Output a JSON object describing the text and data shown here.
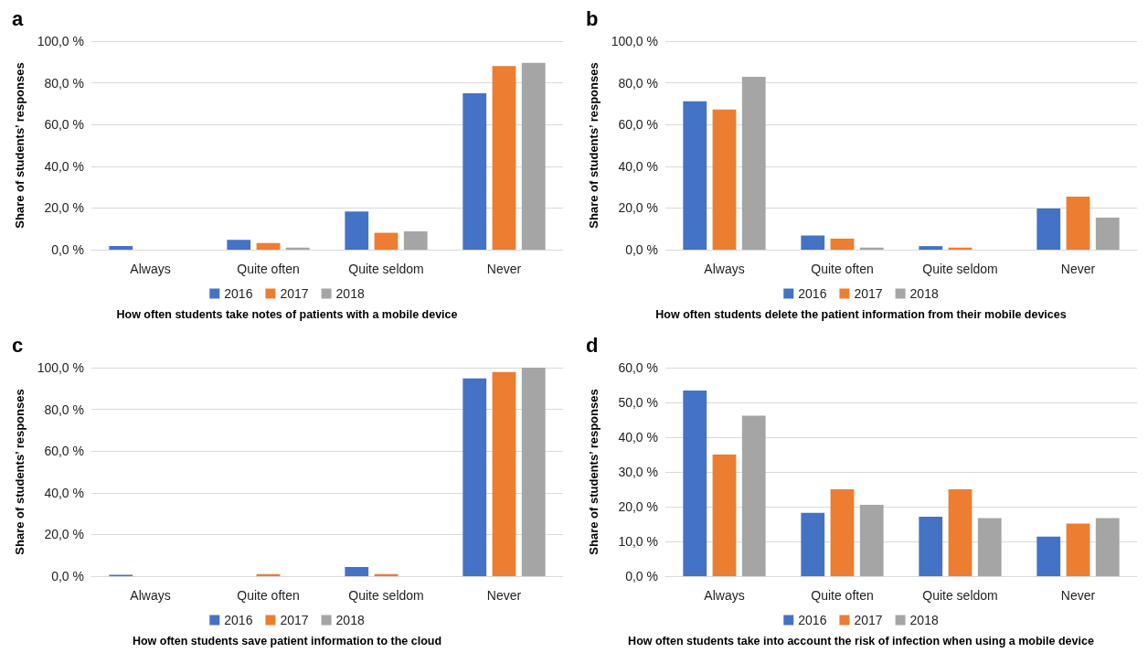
{
  "chart_data": [
    {
      "type": "bar",
      "title": "a",
      "xlabel": "How often students take notes of patients with a mobile device",
      "ylabel": "Share of students’ responses",
      "categories": [
        "Always",
        "Quite often",
        "Quite seldom",
        "Never"
      ],
      "series": [
        {
          "name": "2016",
          "color": "#4472c4",
          "values": [
            1.8,
            4.7,
            18.3,
            75.0
          ]
        },
        {
          "name": "2017",
          "color": "#ed7d31",
          "values": [
            0,
            3.2,
            8.1,
            88.0
          ]
        },
        {
          "name": "2018",
          "color": "#a5a5a5",
          "values": [
            0,
            1.0,
            8.8,
            89.6
          ]
        }
      ],
      "ylim": [
        0,
        100
      ],
      "yticks": [
        {
          "value": 0,
          "label": "0,0 %"
        },
        {
          "value": 20,
          "label": "20,0 %"
        },
        {
          "value": 40,
          "label": "40,0 %"
        },
        {
          "value": 60,
          "label": "60,0 %"
        },
        {
          "value": 80,
          "label": "80,0 %"
        },
        {
          "value": 100,
          "label": "100,0 %"
        }
      ],
      "grid": "y",
      "legend": "bottom"
    },
    {
      "type": "bar",
      "title": "b",
      "xlabel": "How often students delete the patient information from their mobile devices",
      "ylabel": "Share of students’ responses",
      "categories": [
        "Always",
        "Quite often",
        "Quite seldom",
        "Never"
      ],
      "series": [
        {
          "name": "2016",
          "color": "#4472c4",
          "values": [
            71.2,
            6.8,
            1.7,
            19.7
          ]
        },
        {
          "name": "2017",
          "color": "#ed7d31",
          "values": [
            67.2,
            5.3,
            1.0,
            25.4
          ]
        },
        {
          "name": "2018",
          "color": "#a5a5a5",
          "values": [
            82.9,
            1.0,
            0,
            15.4
          ]
        }
      ],
      "ylim": [
        0,
        100
      ],
      "yticks": [
        {
          "value": 0,
          "label": "0,0 %"
        },
        {
          "value": 20,
          "label": "20,0 %"
        },
        {
          "value": 40,
          "label": "40,0 %"
        },
        {
          "value": 60,
          "label": "60,0 %"
        },
        {
          "value": 80,
          "label": "80,0 %"
        },
        {
          "value": 100,
          "label": "100,0 %"
        }
      ],
      "grid": "y",
      "legend": "bottom"
    },
    {
      "type": "bar",
      "title": "c",
      "xlabel": "How often students save patient information to the cloud",
      "ylabel": "Share of students’ responses",
      "categories": [
        "Always",
        "Quite often",
        "Quite seldom",
        "Never"
      ],
      "series": [
        {
          "name": "2016",
          "color": "#4472c4",
          "values": [
            0.7,
            0,
            4.4,
            94.9
          ]
        },
        {
          "name": "2017",
          "color": "#ed7d31",
          "values": [
            0,
            1.0,
            1.0,
            97.9
          ]
        },
        {
          "name": "2018",
          "color": "#a5a5a5",
          "values": [
            0,
            0,
            0,
            100
          ]
        }
      ],
      "ylim": [
        0,
        100
      ],
      "yticks": [
        {
          "value": 0,
          "label": "0,0 %"
        },
        {
          "value": 20,
          "label": "20,0 %"
        },
        {
          "value": 40,
          "label": "40,0 %"
        },
        {
          "value": 60,
          "label": "60,0 %"
        },
        {
          "value": 80,
          "label": "80,0 %"
        },
        {
          "value": 100,
          "label": "100,0 %"
        }
      ],
      "grid": "y",
      "legend": "bottom"
    },
    {
      "type": "bar",
      "title": "d",
      "xlabel": "How often students take into account the risk of infection when using a mobile device",
      "ylabel": "Share of students’ responses",
      "categories": [
        "Always",
        "Quite often",
        "Quite seldom",
        "Never"
      ],
      "series": [
        {
          "name": "2016",
          "color": "#4472c4",
          "values": [
            53.4,
            18.2,
            17.1,
            11.4
          ]
        },
        {
          "name": "2017",
          "color": "#ed7d31",
          "values": [
            35.0,
            25.0,
            25.0,
            15.1
          ]
        },
        {
          "name": "2018",
          "color": "#a5a5a5",
          "values": [
            46.2,
            20.5,
            16.7,
            16.7
          ]
        }
      ],
      "ylim": [
        0,
        60
      ],
      "yticks": [
        {
          "value": 0,
          "label": "0,0 %"
        },
        {
          "value": 10,
          "label": "10,0 %"
        },
        {
          "value": 20,
          "label": "20,0 %"
        },
        {
          "value": 30,
          "label": "30,0 %"
        },
        {
          "value": 40,
          "label": "40,0 %"
        },
        {
          "value": 50,
          "label": "50,0 %"
        },
        {
          "value": 60,
          "label": "60,0 %"
        }
      ],
      "grid": "y",
      "legend": "bottom"
    }
  ]
}
